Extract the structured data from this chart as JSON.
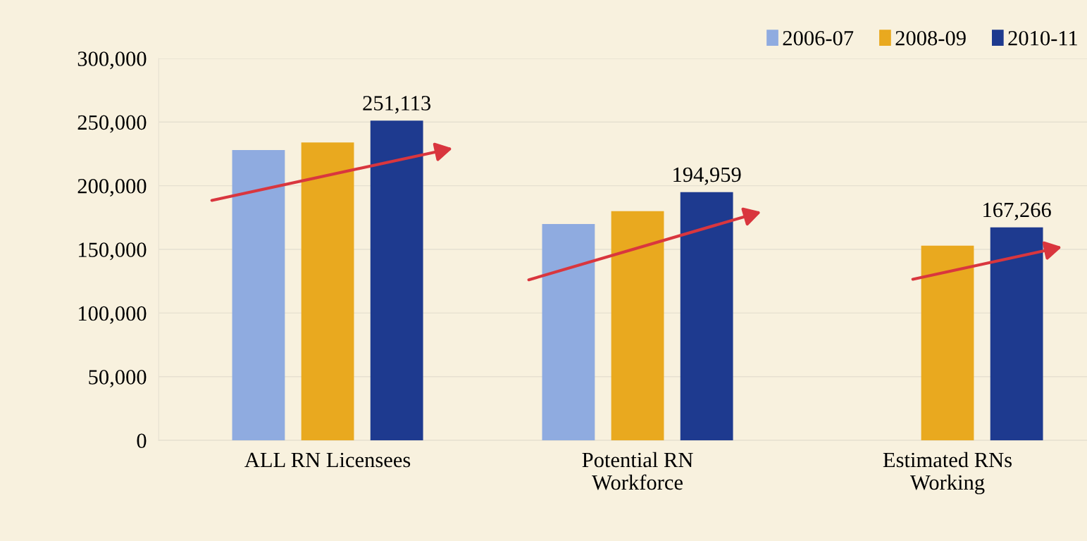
{
  "chart_data": {
    "type": "bar",
    "categories": [
      "ALL RN Licensees",
      "Potential RN\nWorkforce",
      "Estimated RNs\nWorking"
    ],
    "series": [
      {
        "name": "2006-07",
        "color": "#8fabe0",
        "values": [
          228000,
          170000,
          null
        ]
      },
      {
        "name": "2008-09",
        "color": "#e9a91f",
        "values": [
          234000,
          180000,
          153000
        ]
      },
      {
        "name": "2010-11",
        "color": "#1e3a8f",
        "values": [
          251113,
          194959,
          167266
        ],
        "value_labels": [
          "251,113",
          "194,959",
          "167,266"
        ]
      }
    ],
    "ylim": [
      0,
      300000
    ],
    "yticks": [
      {
        "value": 0,
        "label": "0"
      },
      {
        "value": 50000,
        "label": "50,000"
      },
      {
        "value": 100000,
        "label": "100,000"
      },
      {
        "value": 150000,
        "label": "150,000"
      },
      {
        "value": 200000,
        "label": "200,000"
      },
      {
        "value": 250000,
        "label": "250,000"
      },
      {
        "value": 300000,
        "label": "300,000"
      }
    ],
    "grid": "y",
    "legend": "top right"
  }
}
